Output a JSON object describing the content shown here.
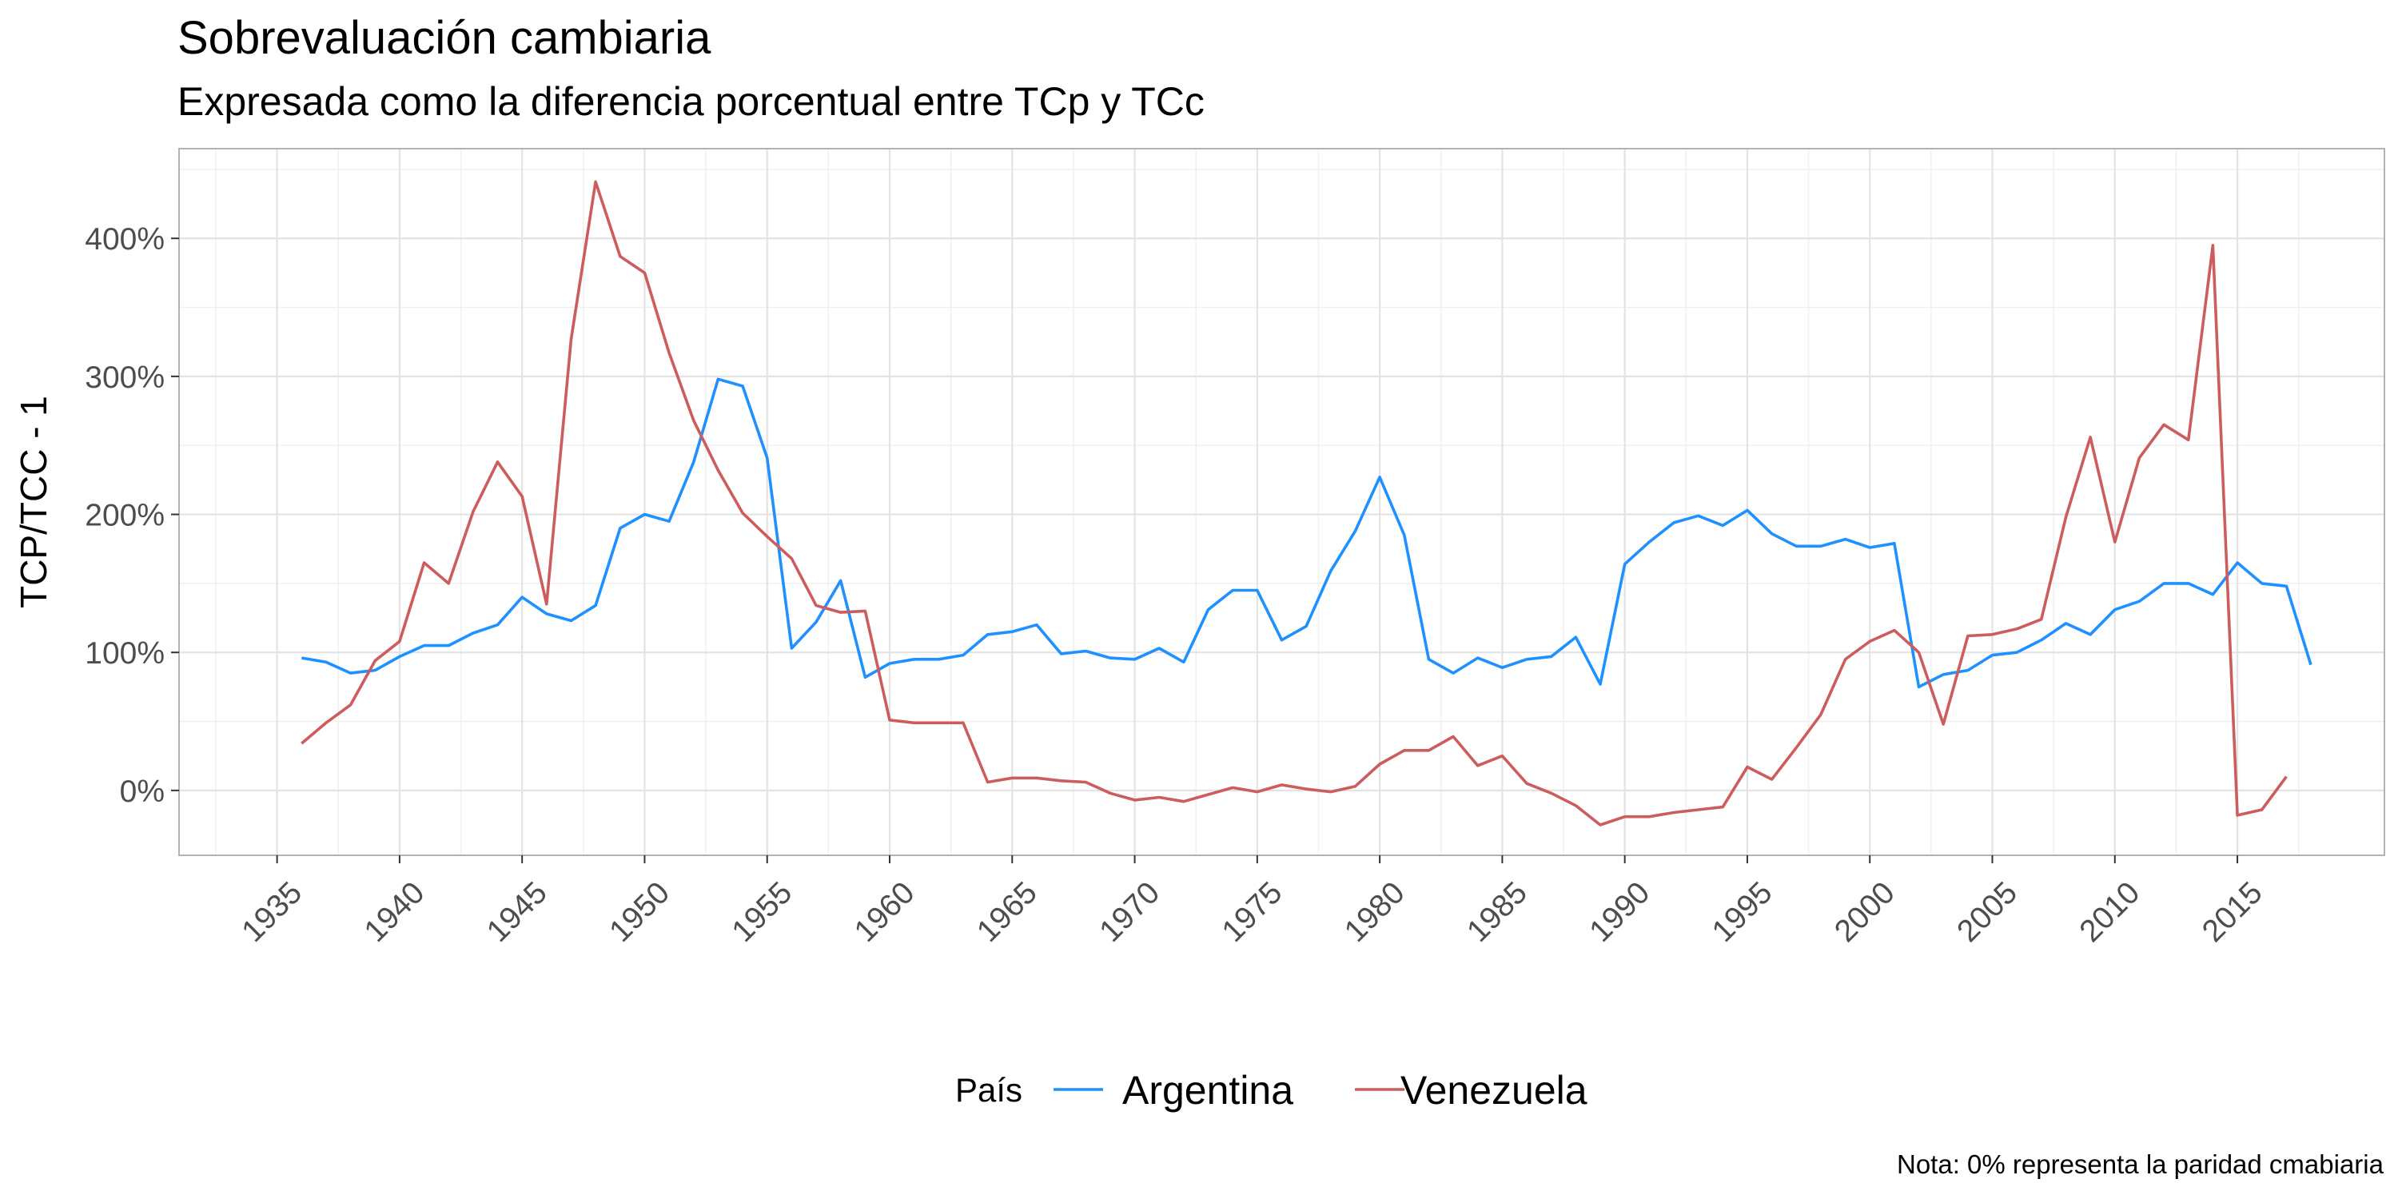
{
  "chart_data": {
    "type": "line",
    "title": "Sobrevaluación cambiaria",
    "subtitle": "Expresada como la diferencia porcentual entre TCp y TCc",
    "xlabel": "",
    "ylabel": "TCP/TCC - 1",
    "caption": "Nota: 0% representa la paridad cmabiaria",
    "legend_title": "País",
    "legend_position": "bottom",
    "grid": true,
    "xlim": [
      1931,
      2021
    ],
    "ylim": [
      -47,
      465
    ],
    "x_ticks": [
      1935,
      1940,
      1945,
      1950,
      1955,
      1960,
      1965,
      1970,
      1975,
      1980,
      1985,
      1990,
      1995,
      2000,
      2005,
      2010,
      2015
    ],
    "y_ticks": [
      0,
      100,
      200,
      300,
      400
    ],
    "y_tick_labels": [
      "0%",
      "100%",
      "200%",
      "300%",
      "400%"
    ],
    "series": [
      {
        "name": "Argentina",
        "color": "#1E90FF",
        "points": [
          [
            1936,
            96
          ],
          [
            1937,
            93
          ],
          [
            1938,
            85
          ],
          [
            1939,
            87
          ],
          [
            1940,
            97
          ],
          [
            1941,
            105
          ],
          [
            1942,
            105
          ],
          [
            1943,
            114
          ],
          [
            1944,
            120
          ],
          [
            1945,
            140
          ],
          [
            1946,
            128
          ],
          [
            1947,
            123
          ],
          [
            1948,
            134
          ],
          [
            1949,
            190
          ],
          [
            1950,
            200
          ],
          [
            1951,
            195
          ],
          [
            1952,
            238
          ],
          [
            1953,
            298
          ],
          [
            1954,
            293
          ],
          [
            1955,
            241
          ],
          [
            1956,
            103
          ],
          [
            1957,
            122
          ],
          [
            1958,
            152
          ],
          [
            1959,
            82
          ],
          [
            1960,
            92
          ],
          [
            1961,
            95
          ],
          [
            1962,
            95
          ],
          [
            1963,
            98
          ],
          [
            1964,
            113
          ],
          [
            1965,
            115
          ],
          [
            1966,
            120
          ],
          [
            1967,
            99
          ],
          [
            1968,
            101
          ],
          [
            1969,
            96
          ],
          [
            1970,
            95
          ],
          [
            1971,
            103
          ],
          [
            1972,
            93
          ],
          [
            1973,
            131
          ],
          [
            1974,
            145
          ],
          [
            1975,
            145
          ],
          [
            1976,
            109
          ],
          [
            1977,
            119
          ],
          [
            1978,
            159
          ],
          [
            1979,
            188
          ],
          [
            1980,
            227
          ],
          [
            1981,
            185
          ],
          [
            1982,
            95
          ],
          [
            1983,
            85
          ],
          [
            1984,
            96
          ],
          [
            1985,
            89
          ],
          [
            1986,
            95
          ],
          [
            1987,
            97
          ],
          [
            1988,
            111
          ],
          [
            1989,
            77
          ],
          [
            1990,
            164
          ],
          [
            1991,
            180
          ],
          [
            1992,
            194
          ],
          [
            1993,
            199
          ],
          [
            1994,
            192
          ],
          [
            1995,
            203
          ],
          [
            1996,
            186
          ],
          [
            1997,
            177
          ],
          [
            1998,
            177
          ],
          [
            1999,
            182
          ],
          [
            2000,
            176
          ],
          [
            2001,
            179
          ],
          [
            2002,
            75
          ],
          [
            2003,
            84
          ],
          [
            2004,
            87
          ],
          [
            2005,
            98
          ],
          [
            2006,
            100
          ],
          [
            2007,
            109
          ],
          [
            2008,
            121
          ],
          [
            2009,
            113
          ],
          [
            2010,
            131
          ],
          [
            2011,
            137
          ],
          [
            2012,
            150
          ],
          [
            2013,
            150
          ],
          [
            2014,
            142
          ],
          [
            2015,
            165
          ],
          [
            2016,
            150
          ],
          [
            2017,
            148
          ],
          [
            2018,
            91
          ]
        ]
      },
      {
        "name": "Venezuela",
        "color": "#CD5C5C",
        "points": [
          [
            1936,
            34
          ],
          [
            1937,
            49
          ],
          [
            1938,
            62
          ],
          [
            1939,
            94
          ],
          [
            1940,
            108
          ],
          [
            1941,
            165
          ],
          [
            1942,
            150
          ],
          [
            1943,
            202
          ],
          [
            1944,
            238
          ],
          [
            1945,
            213
          ],
          [
            1946,
            135
          ],
          [
            1947,
            327
          ],
          [
            1948,
            441
          ],
          [
            1949,
            387
          ],
          [
            1950,
            375
          ],
          [
            1951,
            317
          ],
          [
            1952,
            268
          ],
          [
            1953,
            232
          ],
          [
            1954,
            201
          ],
          [
            1955,
            184
          ],
          [
            1956,
            168
          ],
          [
            1957,
            134
          ],
          [
            1958,
            129
          ],
          [
            1959,
            130
          ],
          [
            1960,
            51
          ],
          [
            1961,
            49
          ],
          [
            1962,
            49
          ],
          [
            1963,
            49
          ],
          [
            1964,
            6
          ],
          [
            1965,
            9
          ],
          [
            1966,
            9
          ],
          [
            1967,
            7
          ],
          [
            1968,
            6
          ],
          [
            1969,
            -2
          ],
          [
            1970,
            -7
          ],
          [
            1971,
            -5
          ],
          [
            1972,
            -8
          ],
          [
            1973,
            -3
          ],
          [
            1974,
            2
          ],
          [
            1975,
            -1
          ],
          [
            1976,
            4
          ],
          [
            1977,
            1
          ],
          [
            1978,
            -1
          ],
          [
            1979,
            3
          ],
          [
            1980,
            19
          ],
          [
            1981,
            29
          ],
          [
            1982,
            29
          ],
          [
            1983,
            39
          ],
          [
            1984,
            18
          ],
          [
            1985,
            25
          ],
          [
            1986,
            5
          ],
          [
            1987,
            -2
          ],
          [
            1988,
            -11
          ],
          [
            1989,
            -25
          ],
          [
            1990,
            -19
          ],
          [
            1991,
            -19
          ],
          [
            1992,
            -16
          ],
          [
            1993,
            -14
          ],
          [
            1994,
            -12
          ],
          [
            1995,
            17
          ],
          [
            1996,
            8
          ],
          [
            1997,
            31
          ],
          [
            1998,
            55
          ],
          [
            1999,
            95
          ],
          [
            2000,
            108
          ],
          [
            2001,
            116
          ],
          [
            2002,
            100
          ],
          [
            2003,
            48
          ],
          [
            2004,
            112
          ],
          [
            2005,
            113
          ],
          [
            2006,
            117
          ],
          [
            2007,
            124
          ],
          [
            2008,
            198
          ],
          [
            2009,
            256
          ],
          [
            2010,
            180
          ],
          [
            2011,
            241
          ],
          [
            2012,
            265
          ],
          [
            2013,
            254
          ],
          [
            2014,
            395
          ],
          [
            2015,
            -18
          ],
          [
            2016,
            -14
          ],
          [
            2017,
            10
          ]
        ]
      }
    ]
  }
}
